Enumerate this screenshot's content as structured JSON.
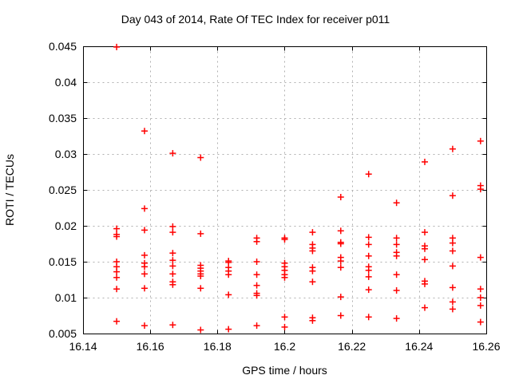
{
  "chart_data": {
    "type": "scatter",
    "title": "Day 043 of 2014, Rate Of TEC Index for receiver p011",
    "xlabel": "GPS time / hours",
    "ylabel": "ROTI / TECUs",
    "xlim": [
      16.14,
      16.26
    ],
    "ylim": [
      0.005,
      0.045
    ],
    "xticks": [
      16.14,
      16.16,
      16.18,
      16.2,
      16.22,
      16.24,
      16.26
    ],
    "xtick_labels": [
      "16.14",
      "16.16",
      "16.18",
      "16.2",
      "16.22",
      "16.24",
      "16.26"
    ],
    "yticks": [
      0.005,
      0.01,
      0.015,
      0.02,
      0.025,
      0.03,
      0.035,
      0.04,
      0.045
    ],
    "ytick_labels": [
      "0.005",
      "0.01",
      "0.015",
      "0.02",
      "0.025",
      "0.03",
      "0.035",
      "0.04",
      "0.045"
    ],
    "grid": true,
    "legend_position": "none",
    "marker": "plus",
    "marker_color": "#ff0000",
    "grid_color": "#b0b0b0",
    "axis_color": "#000000",
    "series": [
      {
        "name": "ROTI",
        "points": [
          [
            16.15,
            0.0449
          ],
          [
            16.15,
            0.0196
          ],
          [
            16.15,
            0.0188
          ],
          [
            16.15,
            0.0185
          ],
          [
            16.15,
            0.015
          ],
          [
            16.15,
            0.0143
          ],
          [
            16.15,
            0.0136
          ],
          [
            16.15,
            0.0128
          ],
          [
            16.15,
            0.0112
          ],
          [
            16.15,
            0.0067
          ],
          [
            16.1583,
            0.0332
          ],
          [
            16.1583,
            0.0224
          ],
          [
            16.1583,
            0.0194
          ],
          [
            16.1583,
            0.0159
          ],
          [
            16.1583,
            0.0148
          ],
          [
            16.1583,
            0.0143
          ],
          [
            16.1583,
            0.0133
          ],
          [
            16.1583,
            0.0113
          ],
          [
            16.1583,
            0.0061
          ],
          [
            16.1667,
            0.0301
          ],
          [
            16.1667,
            0.0199
          ],
          [
            16.1667,
            0.0191
          ],
          [
            16.1667,
            0.0162
          ],
          [
            16.1667,
            0.0152
          ],
          [
            16.1667,
            0.0144
          ],
          [
            16.1667,
            0.0133
          ],
          [
            16.1667,
            0.0122
          ],
          [
            16.1667,
            0.0118
          ],
          [
            16.1667,
            0.0062
          ],
          [
            16.175,
            0.0295
          ],
          [
            16.175,
            0.0189
          ],
          [
            16.175,
            0.0145
          ],
          [
            16.175,
            0.0141
          ],
          [
            16.175,
            0.0137
          ],
          [
            16.175,
            0.0133
          ],
          [
            16.175,
            0.013
          ],
          [
            16.175,
            0.0113
          ],
          [
            16.175,
            0.0055
          ],
          [
            16.1833,
            0.0151
          ],
          [
            16.1833,
            0.0149
          ],
          [
            16.1833,
            0.0142
          ],
          [
            16.1833,
            0.0137
          ],
          [
            16.1833,
            0.0132
          ],
          [
            16.1833,
            0.0104
          ],
          [
            16.1833,
            0.0056
          ],
          [
            16.1917,
            0.0183
          ],
          [
            16.1917,
            0.0178
          ],
          [
            16.1917,
            0.015
          ],
          [
            16.1917,
            0.0132
          ],
          [
            16.1917,
            0.0117
          ],
          [
            16.1917,
            0.0106
          ],
          [
            16.1917,
            0.0103
          ],
          [
            16.1917,
            0.0061
          ],
          [
            16.2,
            0.0183
          ],
          [
            16.2,
            0.0181
          ],
          [
            16.2,
            0.0148
          ],
          [
            16.2,
            0.0143
          ],
          [
            16.2,
            0.0138
          ],
          [
            16.2,
            0.0132
          ],
          [
            16.2,
            0.0128
          ],
          [
            16.2,
            0.0073
          ],
          [
            16.2,
            0.0059
          ],
          [
            16.2083,
            0.0191
          ],
          [
            16.2083,
            0.0174
          ],
          [
            16.2083,
            0.0169
          ],
          [
            16.2083,
            0.0165
          ],
          [
            16.2083,
            0.0142
          ],
          [
            16.2083,
            0.0137
          ],
          [
            16.2083,
            0.0122
          ],
          [
            16.2083,
            0.0072
          ],
          [
            16.2083,
            0.0068
          ],
          [
            16.2167,
            0.024
          ],
          [
            16.2167,
            0.0193
          ],
          [
            16.2167,
            0.0177
          ],
          [
            16.2167,
            0.0175
          ],
          [
            16.2167,
            0.0156
          ],
          [
            16.2167,
            0.0151
          ],
          [
            16.2167,
            0.0142
          ],
          [
            16.2167,
            0.0101
          ],
          [
            16.2167,
            0.0075
          ],
          [
            16.225,
            0.0272
          ],
          [
            16.225,
            0.0184
          ],
          [
            16.225,
            0.0174
          ],
          [
            16.225,
            0.0158
          ],
          [
            16.225,
            0.0143
          ],
          [
            16.225,
            0.0138
          ],
          [
            16.225,
            0.0129
          ],
          [
            16.225,
            0.0111
          ],
          [
            16.225,
            0.0073
          ],
          [
            16.2333,
            0.0232
          ],
          [
            16.2333,
            0.0183
          ],
          [
            16.2333,
            0.0174
          ],
          [
            16.2333,
            0.0163
          ],
          [
            16.2333,
            0.0158
          ],
          [
            16.2333,
            0.0132
          ],
          [
            16.2333,
            0.011
          ],
          [
            16.2333,
            0.0071
          ],
          [
            16.2417,
            0.0289
          ],
          [
            16.2417,
            0.0191
          ],
          [
            16.2417,
            0.0172
          ],
          [
            16.2417,
            0.0168
          ],
          [
            16.2417,
            0.0153
          ],
          [
            16.2417,
            0.0123
          ],
          [
            16.2417,
            0.0119
          ],
          [
            16.2417,
            0.0086
          ],
          [
            16.25,
            0.0307
          ],
          [
            16.25,
            0.0242
          ],
          [
            16.25,
            0.0183
          ],
          [
            16.25,
            0.0176
          ],
          [
            16.25,
            0.0165
          ],
          [
            16.25,
            0.0144
          ],
          [
            16.25,
            0.0114
          ],
          [
            16.25,
            0.0094
          ],
          [
            16.25,
            0.0084
          ],
          [
            16.2583,
            0.0318
          ],
          [
            16.2583,
            0.0256
          ],
          [
            16.2583,
            0.0251
          ],
          [
            16.2583,
            0.0156
          ],
          [
            16.2583,
            0.0112
          ],
          [
            16.2583,
            0.01
          ],
          [
            16.2583,
            0.0089
          ],
          [
            16.2583,
            0.0066
          ]
        ]
      }
    ]
  }
}
